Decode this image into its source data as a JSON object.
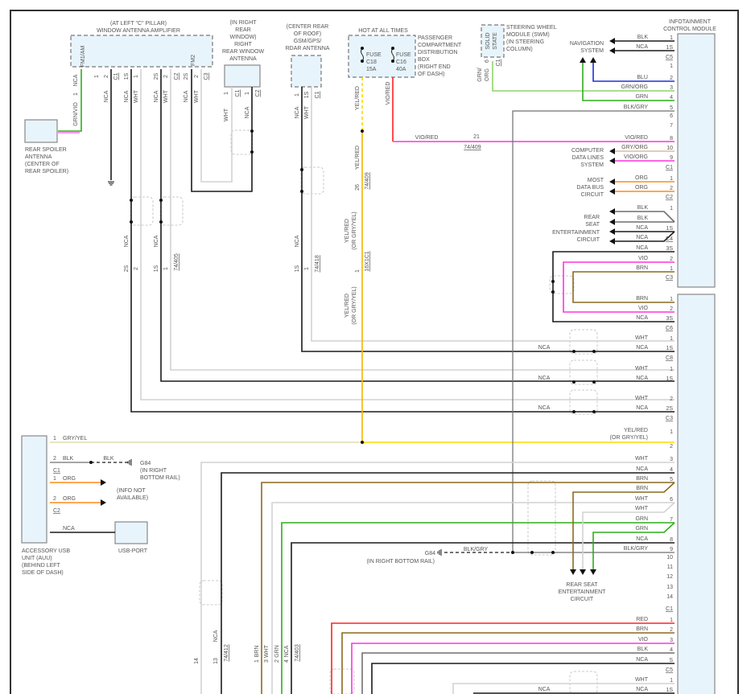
{
  "colors": {
    "blk": "#1c1c1c",
    "gry": "#6f6f6f",
    "wht": "#d2d2d2",
    "grn": "#2fae1a",
    "grnorg": "#8fd46c",
    "blu": "#1f2fe0",
    "vio": "#ff33dd",
    "red": "#ff2222",
    "org": "#ff8c1a",
    "brn": "#8a6a1f",
    "yel": "#ffd700",
    "yelorg": "#f5b400",
    "gryyel": "#e0dcae",
    "gryorg": "#dcbc9c",
    "module_fill": "#e8f4fb"
  },
  "amplifier": {
    "title": [
      "(AT LEFT \"C\" PILLAR)",
      "WINDOW ANTENNA AMPLIFIER"
    ],
    "terminals": [
      "FM1/AM",
      "FM2"
    ],
    "pins": [
      "1",
      "2",
      "C1",
      "1S",
      "1",
      "2S",
      "2",
      "C2",
      "2S",
      "2",
      "C3"
    ],
    "fm1_pin": "1",
    "wire_labels": [
      "NCA",
      "GRN/VIO",
      "NCA",
      "NCA",
      "WHT",
      "NCA",
      "WHT",
      "NCA",
      "WHT"
    ],
    "lower_pins": [
      "2S",
      "2",
      "1S",
      "1",
      "74/405"
    ],
    "lower_labels": [
      "NCA",
      "NCA"
    ]
  },
  "rear_spoiler": {
    "title": [
      "REAR SPOILER",
      "ANTENNA",
      "(CENTER OF",
      "REAR SPOILER)"
    ]
  },
  "rear_window_antenna": {
    "title": [
      "(IN RIGHT",
      "REAR",
      "WINDOW)",
      "RIGHT",
      "REAR WINDOW",
      "ANTENNA"
    ],
    "pins": [
      "1",
      "C1",
      "1",
      "C2"
    ],
    "wire_labels": [
      "WHT",
      "NCA"
    ]
  },
  "gsm_antenna": {
    "title": [
      "(CENTER REAR",
      "OF ROOF)",
      "GSM/GPS/",
      "RDAR ANTENNA"
    ],
    "pins": [
      "1",
      "1S",
      "C1"
    ],
    "wire_labels": [
      "NCA",
      "WHT"
    ],
    "lower_pins": [
      "1S",
      "1",
      "74/418"
    ],
    "lower_label": "NCA"
  },
  "fuse_box": {
    "hot": "HOT AT ALL TIMES",
    "fuse1": [
      "FUSE",
      "C18",
      "15A"
    ],
    "fuse2": [
      "FUSE",
      "C16",
      "40A"
    ],
    "title": [
      "PASSENGER",
      "COMPARTMENT",
      "DISTRIBUTION",
      "BOX",
      "(RIGHT END",
      "OF DASH)"
    ],
    "labels": [
      "YEL/RED",
      "YEL/RED",
      "26",
      "74/409",
      "YEL/RED",
      "(OR GRY/YEL)",
      "1",
      "16X1C1",
      "YEL/RED",
      "(OR GRY/YEL)",
      "VIO/RED"
    ],
    "vio_red": {
      "label": "VIO/RED",
      "pin": "21",
      "conn": "74/409"
    }
  },
  "swm": {
    "inner": [
      "SOLID",
      "STATE"
    ],
    "title": [
      "STEERING WHEEL",
      "MODULE (SWM)",
      "(IN STEERING",
      "COLUMN)"
    ],
    "pins": [
      "6",
      "C1"
    ],
    "wire_label": [
      "GRN/",
      "ORG"
    ]
  },
  "infotainment": {
    "title": [
      "INFOTAINMENT",
      "CONTROL MODULE"
    ],
    "rows_top": [
      [
        "BLK",
        "1"
      ],
      [
        "NCA",
        "1S"
      ],
      [
        "",
        "1"
      ],
      [
        "BLU",
        "2"
      ],
      [
        "GRN/ORG",
        "3"
      ],
      [
        "GRN",
        "4"
      ],
      [
        "BLK/GRY",
        "5"
      ],
      [
        "",
        "6"
      ],
      [
        "",
        "7"
      ],
      [
        "VIO/RED",
        "8"
      ],
      [
        "GRY/ORG",
        "10"
      ],
      [
        "VIO/ORG",
        "9"
      ],
      [
        "ORG",
        "1"
      ],
      [
        "ORG",
        "2"
      ],
      [
        "BLK",
        "1"
      ],
      [
        "BLK",
        ""
      ],
      [
        "NCA",
        "1S"
      ],
      [
        "NCA",
        ""
      ],
      [
        "NCA",
        "3S"
      ],
      [
        "VIO",
        "2"
      ],
      [
        "BRN",
        "1"
      ]
    ],
    "conns_top": [
      "C5",
      "C1",
      "C2",
      "C4",
      "C3"
    ],
    "rows_bottom": [
      [
        "BRN",
        "1",
        ""
      ],
      [
        "VIO",
        "2",
        ""
      ],
      [
        "NCA",
        "3S",
        ""
      ],
      [
        "WHT",
        "1",
        ""
      ],
      [
        "NCA",
        "1S",
        "NCA"
      ],
      [
        "WHT",
        "1",
        ""
      ],
      [
        "NCA",
        "1S",
        "NCA"
      ],
      [
        "WHT",
        "2",
        ""
      ],
      [
        "NCA",
        "2S",
        "NCA"
      ],
      [
        "",
        "1",
        ""
      ],
      [
        "",
        "2",
        ""
      ],
      [
        "WHT",
        "3",
        ""
      ],
      [
        "NCA",
        "4",
        ""
      ],
      [
        "BRN",
        "5",
        ""
      ],
      [
        "BRN",
        "",
        ""
      ],
      [
        "WHT",
        "6",
        ""
      ],
      [
        "WHT",
        "",
        ""
      ],
      [
        "GRN",
        "7",
        ""
      ],
      [
        "GRN",
        "",
        ""
      ],
      [
        "NCA",
        "8",
        ""
      ],
      [
        "BLK/GRY",
        "9",
        ""
      ],
      [
        "",
        "10",
        ""
      ],
      [
        "",
        "11",
        ""
      ],
      [
        "",
        "12",
        ""
      ],
      [
        "",
        "13",
        ""
      ],
      [
        "",
        "14",
        ""
      ],
      [
        "RED",
        "1",
        ""
      ],
      [
        "BRN",
        "2",
        ""
      ],
      [
        "VIO",
        "3",
        ""
      ],
      [
        "BLK",
        "4",
        ""
      ],
      [
        "NCA",
        "S",
        ""
      ],
      [
        "WHT",
        "1",
        ""
      ],
      [
        "NCA",
        "1S",
        "NCA"
      ]
    ],
    "conns_bottom": [
      "C6",
      "C8",
      "C3",
      "C1",
      "C5"
    ],
    "yel_label": [
      "YEL/RED",
      "(OR GRY/YEL)"
    ]
  },
  "destinations": {
    "navigation": [
      "NAVIGATION",
      "SYSTEM"
    ],
    "computer_data": [
      "COMPUTER",
      "DATA LINES",
      "SYSTEM"
    ],
    "most": [
      "MOST",
      "DATA BUS",
      "CIRCUIT"
    ],
    "rear_seat_upper": [
      "REAR",
      "SEAT",
      "ENTERTAINMENT",
      "CIRCUIT"
    ],
    "rear_seat_lower": [
      "REAR SEAT",
      "ENTERTAINMENT",
      "CIRCUIT"
    ]
  },
  "ground_lower": {
    "label": "BLK/GRY",
    "name": "G84",
    "location": "(IN RIGHT BOTTOM RAIL)"
  },
  "auu": {
    "title": [
      "ACCESSORY USB",
      "UNIT (AUU)",
      "(BEHIND LEFT",
      "SIDE OF DASH)"
    ],
    "rows": [
      [
        "1",
        "GRY/YEL"
      ],
      [
        "2",
        "BLK"
      ],
      [
        "1",
        "ORG"
      ],
      [
        "2",
        "ORG"
      ],
      [
        "",
        "NCA"
      ]
    ],
    "conns": [
      "C1",
      "C2"
    ],
    "blk2": "BLK",
    "ground": [
      "G84",
      "(IN RIGHT",
      "BOTTOM RAIL)"
    ],
    "info": [
      "(INFO NOT",
      "AVAILABLE)"
    ],
    "usb": "USB-PORT"
  },
  "bottom_connectors": {
    "pins": [
      "14",
      "13",
      "74/412",
      "1",
      "3",
      "2",
      "4",
      "74/403"
    ],
    "labels": [
      "NCA",
      "BRN",
      "WHT",
      "GRN",
      "NCA"
    ]
  }
}
